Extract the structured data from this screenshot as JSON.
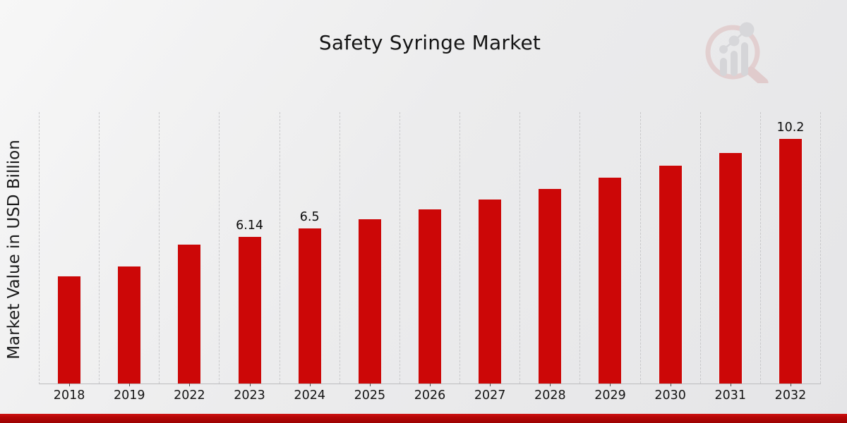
{
  "title": "Safety Syringe Market",
  "y_axis_label": "Market Value in USD Billion",
  "colors": {
    "bar": "#cc0707",
    "accent_band_top": "#cf1212",
    "accent_band_bottom": "#9c0202",
    "gridline": "#c9c9cb",
    "text": "#111111",
    "background": "#ececed"
  },
  "icons": {
    "watermark": "magnifier-bar-chart-logo-watermark"
  },
  "chart_data": {
    "type": "bar",
    "title": "Safety Syringe Market",
    "xlabel": "",
    "ylabel": "Market Value in USD Billion",
    "categories": [
      "2018",
      "2019",
      "2022",
      "2023",
      "2024",
      "2025",
      "2026",
      "2027",
      "2028",
      "2029",
      "2030",
      "2031",
      "2032"
    ],
    "values": [
      4.5,
      4.9,
      5.8,
      6.14,
      6.5,
      6.88,
      7.27,
      7.7,
      8.14,
      8.61,
      9.11,
      9.64,
      10.2
    ],
    "bar_labels": [
      "",
      "",
      "",
      "6.14",
      "6.5",
      "",
      "",
      "",
      "",
      "",
      "",
      "",
      "10.2"
    ],
    "unit": "USD Billion",
    "ylim": [
      0,
      11.3
    ],
    "grid": "vertical-dashed",
    "legend": "none",
    "bar_color": "#cc0707"
  }
}
